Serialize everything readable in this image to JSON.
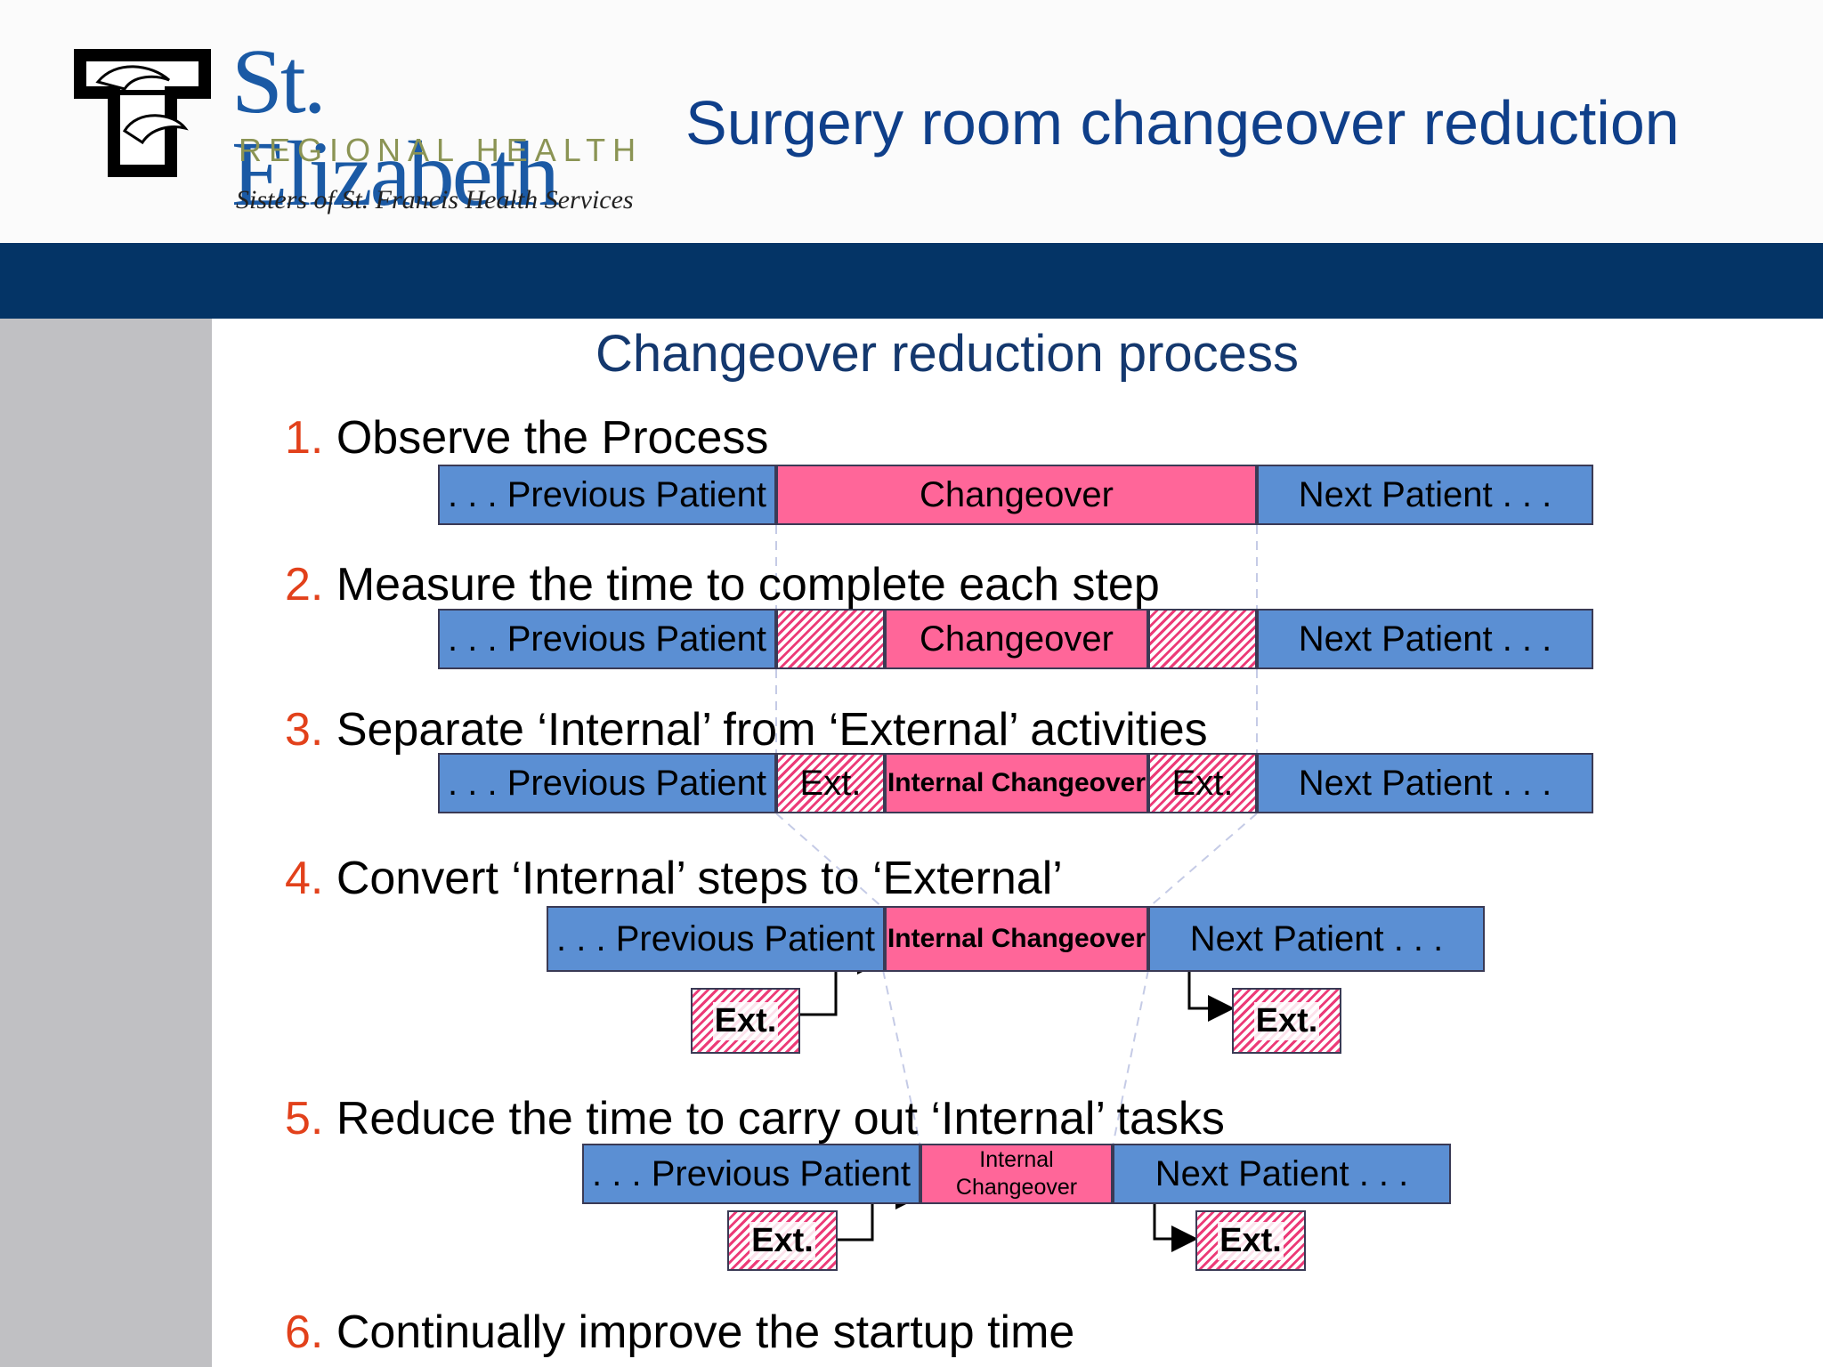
{
  "header": {
    "title": "Surgery room changeover reduction",
    "logo": {
      "name": "St. Elizabeth",
      "tagline": "REGIONAL HEALTH",
      "subtitle": "Sisters of St. Francis Health Services"
    }
  },
  "colors": {
    "brand_blue": "#043466",
    "step_number": "#e2411b",
    "bar_blue": "#5b8fd3",
    "bar_pink": "#ff6699"
  },
  "slide": {
    "heading": "Changeover reduction process",
    "steps": [
      {
        "num": "1.",
        "text": "Observe the Process"
      },
      {
        "num": "2.",
        "text": "Measure the time to complete each step"
      },
      {
        "num": "3.",
        "text": "Separate ‘Internal’ from ‘External’ activities"
      },
      {
        "num": "4.",
        "text": "Convert ‘Internal’ steps to ‘External’"
      },
      {
        "num": "5.",
        "text": "Reduce the time to carry out ‘Internal’ tasks"
      },
      {
        "num": "6.",
        "text": "Continually improve the startup time"
      }
    ]
  },
  "labels": {
    "previous_patient": ". . . Previous Patient",
    "changeover": "Changeover",
    "next_patient": "Next Patient . . .",
    "ext_short": "Ext.",
    "internal_changeover": "Internal Changeover",
    "internal_line1": "Internal",
    "internal_line2": "Changeover"
  }
}
